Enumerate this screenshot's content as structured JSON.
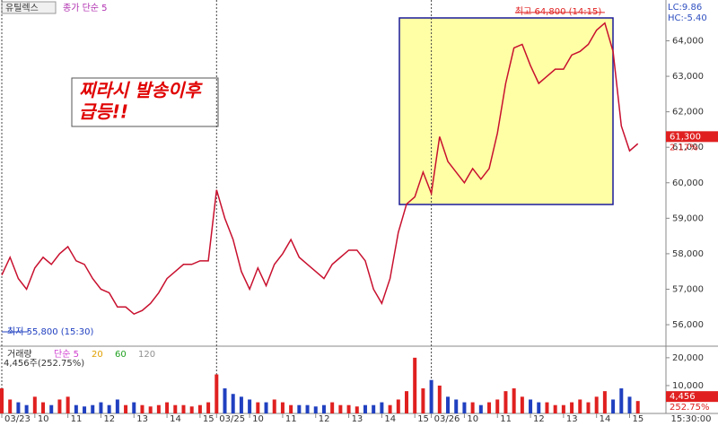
{
  "chart_data": [
    {
      "type": "line",
      "title": "유틸렉스",
      "series_label": "종가 단순 5",
      "lc": "LC:9.86",
      "hc": "HC:-5.40",
      "annotation_lines": [
        "찌라시 발송이후",
        "급등!!"
      ],
      "x": [
        0,
        0.25,
        0.5,
        0.75,
        1,
        1.25,
        1.5,
        1.75,
        2,
        2.25,
        2.5,
        2.75,
        3,
        3.25,
        3.5,
        3.75,
        4,
        4.25,
        4.5,
        4.75,
        5,
        5.25,
        5.5,
        5.75,
        6,
        6.25,
        6.5,
        6.75,
        7,
        7.25,
        7.5,
        7.75,
        8,
        8.25,
        8.5,
        8.75,
        9,
        9.25,
        9.5,
        9.75,
        10,
        10.25,
        10.5,
        10.75,
        11,
        11.25,
        11.5,
        11.75,
        12,
        12.25,
        12.5,
        12.75,
        13,
        13.25,
        13.5,
        13.75,
        14,
        14.25,
        14.5,
        14.75,
        15,
        15.25,
        15.5,
        15.75,
        16,
        16.25,
        16.5,
        16.75,
        17,
        17.25,
        17.5,
        17.75,
        18,
        18.25,
        18.5,
        18.75,
        19,
        19.25
      ],
      "series": [
        {
          "color": "#c8102e",
          "values": [
            57400,
            57900,
            57300,
            57000,
            57600,
            57900,
            57700,
            58000,
            58200,
            57800,
            57700,
            57300,
            57000,
            56900,
            56500,
            56500,
            56300,
            56400,
            56600,
            56900,
            57300,
            57500,
            57700,
            57700,
            57800,
            57800,
            59800,
            59000,
            58400,
            57500,
            57000,
            57600,
            57100,
            57700,
            58000,
            58400,
            57900,
            57700,
            57500,
            57300,
            57700,
            57900,
            58100,
            58100,
            57800,
            57000,
            56600,
            57300,
            58600,
            59400,
            59600,
            60300,
            59700,
            61300,
            60600,
            60300,
            60000,
            60400,
            60100,
            60400,
            61400,
            62800,
            63800,
            63900,
            63300,
            62800,
            63000,
            63200,
            63200,
            63600,
            63700,
            63900,
            64300,
            64500,
            63700,
            61600,
            60900,
            61100
          ]
        }
      ],
      "ylim": [
        55420,
        65150
      ],
      "yticks": [
        {
          "value": 56000,
          "label": "56,000"
        },
        {
          "value": 57000,
          "label": "57,000"
        },
        {
          "value": 58000,
          "label": "58,000"
        },
        {
          "value": 59000,
          "label": "59,000"
        },
        {
          "value": 60000,
          "label": "60,000"
        },
        {
          "value": 61000,
          "label": "61,000"
        },
        {
          "value": 62000,
          "label": "62,000"
        },
        {
          "value": 63000,
          "label": "63,000"
        },
        {
          "value": 64000,
          "label": "64,000"
        }
      ],
      "high_marker": {
        "x": 18.25,
        "value": 64800,
        "label": "최고 64,800 (14:15)"
      },
      "low_marker": {
        "x": 0,
        "value": 55800,
        "label": "최저 55,800 (15:30)"
      },
      "last": {
        "value": 61300,
        "label": "61,300",
        "change": "2.17%"
      }
    },
    {
      "type": "bar",
      "title": "거래량",
      "ma_labels": [
        {
          "label": "단순 5",
          "color": "#d040d0"
        },
        {
          "label": "20",
          "color": "#e0a000"
        },
        {
          "label": "60",
          "color": "#20a020"
        },
        {
          "label": "120",
          "color": "#909090"
        }
      ],
      "summary": "4,456주(252.75%)",
      "values": [
        9000,
        5000,
        4000,
        3000,
        6000,
        4000,
        3000,
        5000,
        6000,
        3000,
        2500,
        3000,
        4000,
        3000,
        5000,
        3000,
        4000,
        3000,
        2500,
        3000,
        4000,
        3000,
        3000,
        2500,
        3000,
        4000,
        14000,
        9000,
        7000,
        6000,
        5000,
        4000,
        4000,
        5000,
        4000,
        3000,
        3000,
        3000,
        2500,
        3000,
        4000,
        3000,
        3000,
        2500,
        3000,
        3000,
        4000,
        3000,
        5000,
        8000,
        20000,
        9000,
        12000,
        10000,
        6000,
        5000,
        4000,
        4000,
        3000,
        4000,
        5000,
        8000,
        9000,
        6000,
        5000,
        4000,
        4000,
        3000,
        3000,
        4000,
        5000,
        4000,
        6000,
        8000,
        5000,
        9000,
        6000,
        4456
      ],
      "ylim": [
        0,
        23500
      ],
      "yticks": [
        {
          "value": 10000,
          "label": "10,000"
        },
        {
          "value": 20000,
          "label": "20,000"
        }
      ],
      "last": {
        "value": 4456,
        "label": "4,456",
        "change": "252.75%"
      },
      "xlim": [
        0,
        20.1
      ],
      "xticks": [
        {
          "value": 0,
          "label": "03/23"
        },
        {
          "value": 1,
          "label": "10"
        },
        {
          "value": 2,
          "label": "11"
        },
        {
          "value": 3,
          "label": "12"
        },
        {
          "value": 4,
          "label": "13"
        },
        {
          "value": 5,
          "label": "14"
        },
        {
          "value": 6,
          "label": "15"
        },
        {
          "value": 6.5,
          "label": "03/25"
        },
        {
          "value": 7.5,
          "label": "10"
        },
        {
          "value": 8.5,
          "label": "11"
        },
        {
          "value": 9.5,
          "label": "12"
        },
        {
          "value": 10.5,
          "label": "13"
        },
        {
          "value": 11.5,
          "label": "14"
        },
        {
          "value": 12.5,
          "label": "15"
        },
        {
          "value": 13,
          "label": "03/26"
        },
        {
          "value": 14,
          "label": "10"
        },
        {
          "value": 15,
          "label": "11"
        },
        {
          "value": 16,
          "label": "12"
        },
        {
          "value": 17,
          "label": "13"
        },
        {
          "value": 18,
          "label": "14"
        },
        {
          "value": 19,
          "label": "15"
        }
      ],
      "time_label": "15:30:00"
    }
  ]
}
